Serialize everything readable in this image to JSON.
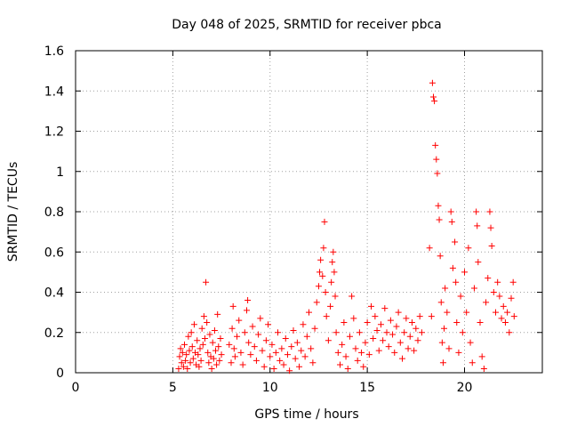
{
  "chart_data": {
    "type": "scatter",
    "title": "Day 048 of 2025, SRMTID for receiver pbca",
    "xlabel": "GPS time / hours",
    "ylabel": "SRMTID / TECUs",
    "xlim": [
      0,
      24
    ],
    "ylim": [
      0,
      1.6
    ],
    "xticks": [
      0,
      5,
      10,
      15,
      20
    ],
    "xtick_labels": [
      "0",
      "5",
      "10",
      "15",
      "20"
    ],
    "yticks": [
      0,
      0.2,
      0.4,
      0.6,
      0.8,
      1.0,
      1.2,
      1.4,
      1.6
    ],
    "ytick_labels": [
      "0",
      "0.2",
      "0.4",
      "0.6",
      "0.8",
      "1",
      "1.2",
      "1.4",
      "1.6"
    ],
    "grid": true,
    "marker": "plus",
    "colors": {
      "series": "#ff0000",
      "grid": "#a0a0a0",
      "axes": "#000000"
    },
    "series": [
      {
        "name": "SRMTID",
        "points": [
          [
            5.3,
            0.02
          ],
          [
            5.35,
            0.08
          ],
          [
            5.4,
            0.12
          ],
          [
            5.45,
            0.05
          ],
          [
            5.5,
            0.1
          ],
          [
            5.55,
            0.03
          ],
          [
            5.6,
            0.14
          ],
          [
            5.65,
            0.06
          ],
          [
            5.7,
            0.09
          ],
          [
            5.75,
            0.02
          ],
          [
            5.8,
            0.18
          ],
          [
            5.85,
            0.11
          ],
          [
            5.9,
            0.05
          ],
          [
            5.95,
            0.2
          ],
          [
            6.0,
            0.13
          ],
          [
            6.05,
            0.07
          ],
          [
            6.1,
            0.24
          ],
          [
            6.15,
            0.1
          ],
          [
            6.2,
            0.04
          ],
          [
            6.25,
            0.16
          ],
          [
            6.3,
            0.09
          ],
          [
            6.35,
            0.03
          ],
          [
            6.4,
            0.12
          ],
          [
            6.45,
            0.06
          ],
          [
            6.5,
            0.22
          ],
          [
            6.55,
            0.14
          ],
          [
            6.6,
            0.28
          ],
          [
            6.65,
            0.17
          ],
          [
            6.7,
            0.45
          ],
          [
            6.75,
            0.25
          ],
          [
            6.8,
            0.1
          ],
          [
            6.85,
            0.05
          ],
          [
            6.9,
            0.19
          ],
          [
            6.95,
            0.08
          ],
          [
            7.0,
            0.02
          ],
          [
            7.05,
            0.15
          ],
          [
            7.1,
            0.07
          ],
          [
            7.15,
            0.21
          ],
          [
            7.2,
            0.11
          ],
          [
            7.25,
            0.04
          ],
          [
            7.3,
            0.29
          ],
          [
            7.35,
            0.13
          ],
          [
            7.4,
            0.06
          ],
          [
            7.45,
            0.17
          ],
          [
            7.5,
            0.09
          ],
          [
            7.9,
            0.14
          ],
          [
            8.0,
            0.05
          ],
          [
            8.05,
            0.22
          ],
          [
            8.1,
            0.33
          ],
          [
            8.15,
            0.12
          ],
          [
            8.2,
            0.08
          ],
          [
            8.3,
            0.18
          ],
          [
            8.4,
            0.26
          ],
          [
            8.5,
            0.1
          ],
          [
            8.6,
            0.04
          ],
          [
            8.7,
            0.2
          ],
          [
            8.8,
            0.31
          ],
          [
            8.85,
            0.36
          ],
          [
            8.9,
            0.15
          ],
          [
            9.0,
            0.09
          ],
          [
            9.1,
            0.23
          ],
          [
            9.2,
            0.13
          ],
          [
            9.3,
            0.06
          ],
          [
            9.4,
            0.19
          ],
          [
            9.5,
            0.27
          ],
          [
            9.6,
            0.11
          ],
          [
            9.7,
            0.03
          ],
          [
            9.8,
            0.16
          ],
          [
            9.9,
            0.24
          ],
          [
            10.0,
            0.08
          ],
          [
            10.1,
            0.14
          ],
          [
            10.2,
            0.02
          ],
          [
            10.3,
            0.1
          ],
          [
            10.4,
            0.2
          ],
          [
            10.5,
            0.06
          ],
          [
            10.6,
            0.12
          ],
          [
            10.7,
            0.04
          ],
          [
            10.8,
            0.17
          ],
          [
            10.9,
            0.09
          ],
          [
            11.0,
            0.01
          ],
          [
            11.1,
            0.13
          ],
          [
            11.2,
            0.21
          ],
          [
            11.3,
            0.07
          ],
          [
            11.4,
            0.15
          ],
          [
            11.5,
            0.03
          ],
          [
            11.6,
            0.11
          ],
          [
            11.7,
            0.24
          ],
          [
            11.8,
            0.08
          ],
          [
            11.9,
            0.18
          ],
          [
            12.0,
            0.3
          ],
          [
            12.1,
            0.12
          ],
          [
            12.2,
            0.05
          ],
          [
            12.3,
            0.22
          ],
          [
            12.4,
            0.35
          ],
          [
            12.5,
            0.43
          ],
          [
            12.55,
            0.5
          ],
          [
            12.6,
            0.56
          ],
          [
            12.7,
            0.48
          ],
          [
            12.75,
            0.62
          ],
          [
            12.8,
            0.75
          ],
          [
            12.85,
            0.4
          ],
          [
            12.9,
            0.28
          ],
          [
            13.0,
            0.16
          ],
          [
            13.1,
            0.33
          ],
          [
            13.15,
            0.45
          ],
          [
            13.2,
            0.55
          ],
          [
            13.25,
            0.6
          ],
          [
            13.3,
            0.5
          ],
          [
            13.35,
            0.38
          ],
          [
            13.4,
            0.2
          ],
          [
            13.5,
            0.1
          ],
          [
            13.6,
            0.04
          ],
          [
            13.7,
            0.14
          ],
          [
            13.8,
            0.25
          ],
          [
            13.9,
            0.08
          ],
          [
            14.0,
            0.02
          ],
          [
            14.1,
            0.18
          ],
          [
            14.2,
            0.38
          ],
          [
            14.3,
            0.27
          ],
          [
            14.4,
            0.12
          ],
          [
            14.5,
            0.06
          ],
          [
            14.6,
            0.2
          ],
          [
            14.7,
            0.1
          ],
          [
            14.8,
            0.03
          ],
          [
            14.9,
            0.15
          ],
          [
            15.0,
            0.25
          ],
          [
            15.1,
            0.09
          ],
          [
            15.2,
            0.33
          ],
          [
            15.3,
            0.17
          ],
          [
            15.4,
            0.28
          ],
          [
            15.5,
            0.21
          ],
          [
            15.6,
            0.11
          ],
          [
            15.7,
            0.24
          ],
          [
            15.8,
            0.16
          ],
          [
            15.9,
            0.32
          ],
          [
            16.0,
            0.2
          ],
          [
            16.1,
            0.13
          ],
          [
            16.2,
            0.26
          ],
          [
            16.3,
            0.19
          ],
          [
            16.4,
            0.1
          ],
          [
            16.5,
            0.23
          ],
          [
            16.6,
            0.3
          ],
          [
            16.7,
            0.15
          ],
          [
            16.8,
            0.07
          ],
          [
            16.9,
            0.2
          ],
          [
            17.0,
            0.27
          ],
          [
            17.1,
            0.12
          ],
          [
            17.2,
            0.18
          ],
          [
            17.3,
            0.25
          ],
          [
            17.4,
            0.11
          ],
          [
            17.5,
            0.22
          ],
          [
            17.6,
            0.16
          ],
          [
            17.7,
            0.28
          ],
          [
            17.8,
            0.2
          ],
          [
            18.2,
            0.62
          ],
          [
            18.3,
            0.28
          ],
          [
            18.35,
            1.44
          ],
          [
            18.4,
            1.37
          ],
          [
            18.45,
            1.35
          ],
          [
            18.5,
            1.13
          ],
          [
            18.55,
            1.06
          ],
          [
            18.6,
            0.99
          ],
          [
            18.65,
            0.83
          ],
          [
            18.7,
            0.76
          ],
          [
            18.75,
            0.58
          ],
          [
            18.8,
            0.35
          ],
          [
            18.85,
            0.15
          ],
          [
            18.9,
            0.05
          ],
          [
            18.95,
            0.22
          ],
          [
            19.0,
            0.42
          ],
          [
            19.1,
            0.3
          ],
          [
            19.2,
            0.12
          ],
          [
            19.3,
            0.8
          ],
          [
            19.35,
            0.75
          ],
          [
            19.4,
            0.52
          ],
          [
            19.5,
            0.65
          ],
          [
            19.55,
            0.45
          ],
          [
            19.6,
            0.25
          ],
          [
            19.7,
            0.1
          ],
          [
            19.8,
            0.38
          ],
          [
            19.9,
            0.2
          ],
          [
            20.0,
            0.5
          ],
          [
            20.1,
            0.3
          ],
          [
            20.2,
            0.62
          ],
          [
            20.3,
            0.15
          ],
          [
            20.4,
            0.05
          ],
          [
            20.5,
            0.42
          ],
          [
            20.6,
            0.8
          ],
          [
            20.65,
            0.73
          ],
          [
            20.7,
            0.55
          ],
          [
            20.8,
            0.25
          ],
          [
            20.9,
            0.08
          ],
          [
            21.0,
            0.02
          ],
          [
            21.1,
            0.35
          ],
          [
            21.2,
            0.47
          ],
          [
            21.3,
            0.8
          ],
          [
            21.35,
            0.72
          ],
          [
            21.4,
            0.63
          ],
          [
            21.5,
            0.4
          ],
          [
            21.6,
            0.3
          ],
          [
            21.7,
            0.45
          ],
          [
            21.8,
            0.38
          ],
          [
            21.9,
            0.27
          ],
          [
            22.0,
            0.33
          ],
          [
            22.1,
            0.25
          ],
          [
            22.2,
            0.3
          ],
          [
            22.3,
            0.2
          ],
          [
            22.4,
            0.37
          ],
          [
            22.5,
            0.45
          ],
          [
            22.55,
            0.28
          ]
        ]
      }
    ]
  }
}
